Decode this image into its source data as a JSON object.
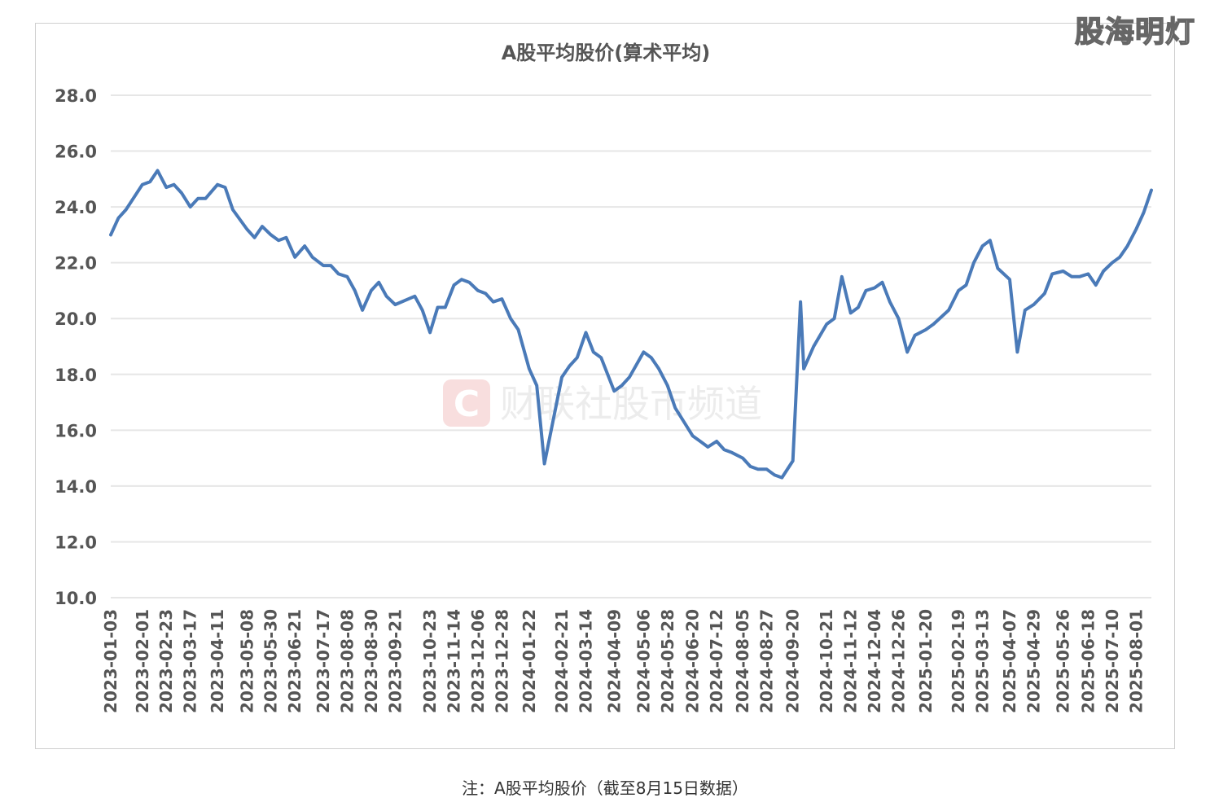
{
  "watermark": "股海明灯",
  "caption": "注：A股平均股价（截至8月15日数据）",
  "center_watermark": "财联社股市频道",
  "center_logo_letter": "C",
  "colors": {
    "line": "#4a7ab8",
    "grid": "#e6e6e6",
    "axis_text": "#555555"
  },
  "chart_data": {
    "type": "line",
    "title": "A股平均股价(算术平均)",
    "ylim": [
      10.0,
      28.0
    ],
    "yticks": [
      "10.0",
      "12.0",
      "14.0",
      "16.0",
      "18.0",
      "20.0",
      "22.0",
      "24.0",
      "26.0",
      "28.0"
    ],
    "xticks": [
      "2023-01-03",
      "2023-02-01",
      "2023-02-23",
      "2023-03-17",
      "2023-04-11",
      "2023-05-08",
      "2023-05-30",
      "2023-06-21",
      "2023-07-17",
      "2023-08-08",
      "2023-08-30",
      "2023-09-21",
      "2023-10-23",
      "2023-11-14",
      "2023-12-06",
      "2023-12-28",
      "2024-01-22",
      "2024-02-21",
      "2024-03-14",
      "2024-04-09",
      "2024-05-06",
      "2024-05-28",
      "2024-06-20",
      "2024-07-12",
      "2024-08-05",
      "2024-08-27",
      "2024-09-20",
      "2024-10-21",
      "2024-11-12",
      "2024-12-04",
      "2024-12-26",
      "2025-01-20",
      "2025-02-19",
      "2025-03-13",
      "2025-04-07",
      "2025-04-29",
      "2025-05-26",
      "2025-06-18",
      "2025-07-10",
      "2025-08-01"
    ],
    "grid": "horizontal",
    "series": [
      {
        "x": [
          "2023-01-03",
          "2023-01-10",
          "2023-01-17",
          "2023-02-01",
          "2023-02-08",
          "2023-02-15",
          "2023-02-23",
          "2023-03-02",
          "2023-03-09",
          "2023-03-17",
          "2023-03-24",
          "2023-03-31",
          "2023-04-11",
          "2023-04-18",
          "2023-04-25",
          "2023-05-08",
          "2023-05-15",
          "2023-05-22",
          "2023-05-30",
          "2023-06-06",
          "2023-06-13",
          "2023-06-21",
          "2023-06-30",
          "2023-07-07",
          "2023-07-17",
          "2023-07-24",
          "2023-07-31",
          "2023-08-08",
          "2023-08-15",
          "2023-08-22",
          "2023-08-30",
          "2023-09-06",
          "2023-09-13",
          "2023-09-21",
          "2023-10-09",
          "2023-10-16",
          "2023-10-23",
          "2023-10-30",
          "2023-11-06",
          "2023-11-14",
          "2023-11-21",
          "2023-11-28",
          "2023-12-06",
          "2023-12-13",
          "2023-12-20",
          "2023-12-28",
          "2024-01-05",
          "2024-01-12",
          "2024-01-22",
          "2024-01-29",
          "2024-02-05",
          "2024-02-21",
          "2024-02-28",
          "2024-03-06",
          "2024-03-14",
          "2024-03-21",
          "2024-03-28",
          "2024-04-09",
          "2024-04-16",
          "2024-04-23",
          "2024-05-06",
          "2024-05-13",
          "2024-05-20",
          "2024-05-28",
          "2024-06-04",
          "2024-06-12",
          "2024-06-20",
          "2024-06-27",
          "2024-07-04",
          "2024-07-12",
          "2024-07-19",
          "2024-07-26",
          "2024-08-05",
          "2024-08-12",
          "2024-08-19",
          "2024-08-27",
          "2024-09-03",
          "2024-09-10",
          "2024-09-20",
          "2024-09-27",
          "2024-09-30",
          "2024-10-09",
          "2024-10-21",
          "2024-10-28",
          "2024-11-04",
          "2024-11-12",
          "2024-11-19",
          "2024-11-26",
          "2024-12-04",
          "2024-12-11",
          "2024-12-18",
          "2024-12-26",
          "2025-01-03",
          "2025-01-10",
          "2025-01-20",
          "2025-01-27",
          "2025-02-10",
          "2025-02-19",
          "2025-02-26",
          "2025-03-05",
          "2025-03-13",
          "2025-03-20",
          "2025-03-27",
          "2025-04-07",
          "2025-04-14",
          "2025-04-21",
          "2025-04-29",
          "2025-05-09",
          "2025-05-16",
          "2025-05-26",
          "2025-06-03",
          "2025-06-10",
          "2025-06-18",
          "2025-06-25",
          "2025-07-02",
          "2025-07-10",
          "2025-07-17",
          "2025-07-24",
          "2025-08-01",
          "2025-08-08",
          "2025-08-15"
        ],
        "y": [
          23.0,
          23.6,
          23.9,
          24.8,
          24.9,
          25.3,
          24.7,
          24.8,
          24.5,
          24.0,
          24.3,
          24.3,
          24.8,
          24.7,
          23.9,
          23.2,
          22.9,
          23.3,
          23.0,
          22.8,
          22.9,
          22.2,
          22.6,
          22.2,
          21.9,
          21.9,
          21.6,
          21.5,
          21.0,
          20.3,
          21.0,
          21.3,
          20.8,
          20.5,
          20.8,
          20.3,
          19.5,
          20.4,
          20.4,
          21.2,
          21.4,
          21.3,
          21.0,
          20.9,
          20.6,
          20.7,
          20.0,
          19.6,
          18.2,
          17.6,
          14.8,
          17.9,
          18.3,
          18.6,
          19.5,
          18.8,
          18.6,
          17.4,
          17.6,
          17.9,
          18.8,
          18.6,
          18.2,
          17.6,
          16.8,
          16.3,
          15.8,
          15.6,
          15.4,
          15.6,
          15.3,
          15.2,
          15.0,
          14.7,
          14.6,
          14.6,
          14.4,
          14.3,
          14.9,
          20.6,
          18.2,
          19.0,
          19.8,
          20.0,
          21.5,
          20.2,
          20.4,
          21.0,
          21.1,
          21.3,
          20.6,
          20.0,
          18.8,
          19.4,
          19.6,
          19.8,
          20.3,
          21.0,
          21.2,
          22.0,
          22.6,
          22.8,
          21.8,
          21.4,
          18.8,
          20.3,
          20.5,
          20.9,
          21.6,
          21.7,
          21.5,
          21.5,
          21.6,
          21.2,
          21.7,
          22.0,
          22.2,
          22.6,
          23.2,
          23.8,
          24.6
        ]
      }
    ]
  }
}
